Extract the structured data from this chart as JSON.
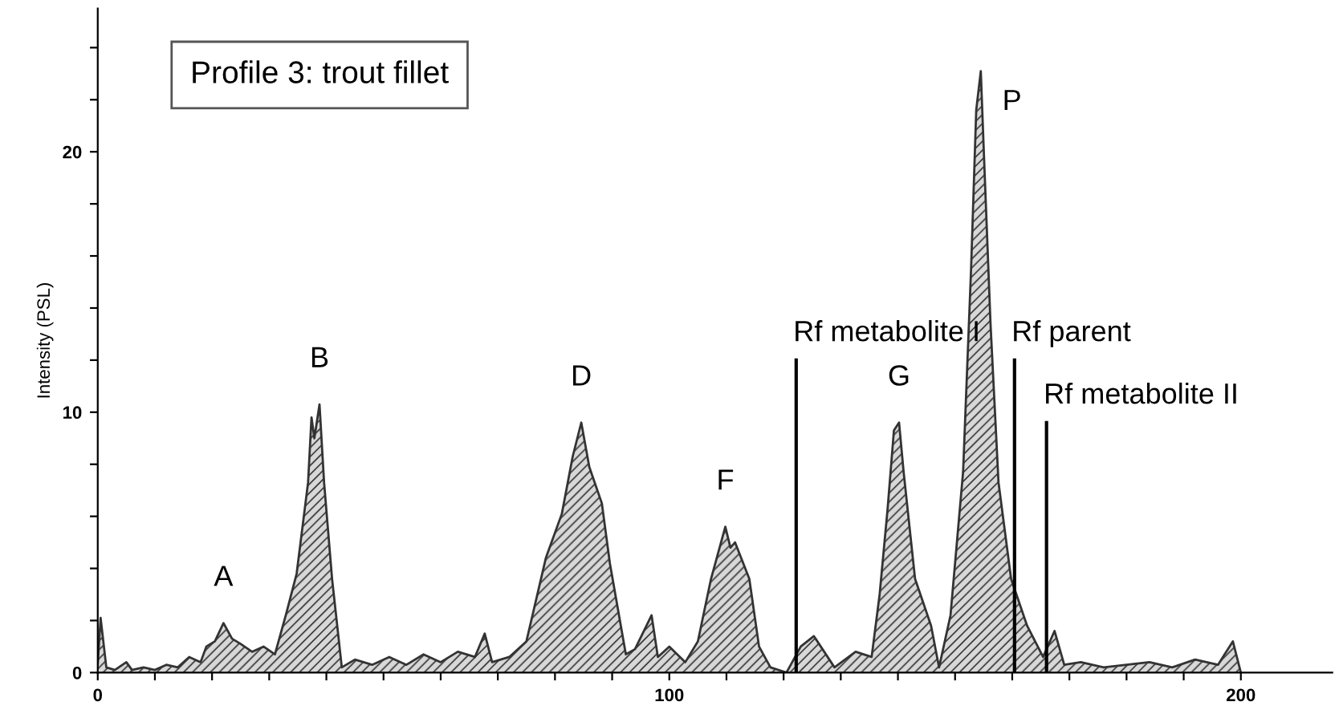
{
  "chart_data": {
    "type": "area",
    "title": "Profile 3: trout fillet",
    "ylabel": "Intensity (PSL)",
    "xlim": [
      0,
      216
    ],
    "ylim": [
      0,
      25.5
    ],
    "xticks": [
      0,
      {
        "value": 10,
        "label": null
      },
      {
        "value": 20,
        "label": null
      },
      {
        "value": 30,
        "label": null
      },
      {
        "value": 40,
        "label": null
      },
      {
        "value": 50,
        "label": null
      },
      {
        "value": 60,
        "label": null
      },
      {
        "value": 70,
        "label": null
      },
      {
        "value": 80,
        "label": null
      },
      {
        "value": 90,
        "label": null
      },
      100,
      {
        "value": 110,
        "label": null
      },
      {
        "value": 120,
        "label": null
      },
      {
        "value": 130,
        "label": null
      },
      {
        "value": 140,
        "label": null
      },
      {
        "value": 150,
        "label": null
      },
      {
        "value": 160,
        "label": null
      },
      {
        "value": 170,
        "label": null
      },
      {
        "value": 180,
        "label": null
      },
      {
        "value": 190,
        "label": null
      },
      200
    ],
    "yticks": [
      0,
      {
        "value": 2,
        "label": null
      },
      {
        "value": 4,
        "label": null
      },
      {
        "value": 6,
        "label": null
      },
      {
        "value": 8,
        "label": null
      },
      10,
      {
        "value": 12,
        "label": null
      },
      {
        "value": 14,
        "label": null
      },
      {
        "value": 16,
        "label": null
      },
      {
        "value": 18,
        "label": null
      },
      20,
      {
        "value": 22,
        "label": null
      },
      {
        "value": 24,
        "label": null
      }
    ],
    "grid": false,
    "legend": false,
    "series": [
      {
        "color": "#333333",
        "x": [
          0,
          0.5,
          1.5,
          3,
          5,
          6,
          8,
          10,
          12,
          14,
          16,
          18,
          19,
          20.5,
          22,
          23.5,
          25,
          27,
          29,
          31,
          32.9,
          34.8,
          36.8,
          37.4,
          37.9,
          38.8,
          39.6,
          41.0,
          42.7,
          45,
          48,
          51,
          54,
          57,
          60,
          63,
          66,
          67.7,
          69,
          72,
          75.0,
          78.4,
          81.2,
          83.1,
          84.6,
          86.0,
          88.2,
          89.6,
          92.4,
          94,
          96.9,
          98,
          100,
          102.8,
          105,
          107.3,
          109.8,
          110.7,
          111.5,
          114.0,
          115.7,
          117.7,
          120.5,
          123,
          125.3,
          128.9,
          132.6,
          135.4,
          136.8,
          138.2,
          139.3,
          140.2,
          141.0,
          143.0,
          145.8,
          147.2,
          149.2,
          151.4,
          152.8,
          153.7,
          154.5,
          155.1,
          156.2,
          157.6,
          159.8,
          162.6,
          165.4,
          167.4,
          169.1,
          172,
          176,
          180,
          184,
          188,
          192,
          196,
          198.6,
          200
        ],
        "values": [
          0.3,
          2.1,
          0.2,
          0.1,
          0.4,
          0.1,
          0.2,
          0.1,
          0.3,
          0.2,
          0.6,
          0.4,
          1.0,
          1.2,
          1.9,
          1.3,
          1.1,
          0.8,
          1.0,
          0.7,
          2.2,
          3.8,
          7.3,
          9.8,
          9.0,
          10.3,
          7.3,
          3.6,
          0.2,
          0.5,
          0.3,
          0.6,
          0.3,
          0.7,
          0.4,
          0.8,
          0.6,
          1.5,
          0.4,
          0.6,
          1.2,
          4.4,
          6.1,
          8.3,
          9.6,
          7.9,
          6.5,
          4.2,
          0.7,
          0.9,
          2.2,
          0.6,
          1.0,
          0.4,
          1.2,
          3.6,
          5.6,
          4.8,
          5.0,
          3.6,
          1.0,
          0.2,
          0.0,
          1.0,
          1.4,
          0.2,
          0.8,
          0.6,
          3.0,
          6.3,
          9.3,
          9.6,
          7.7,
          3.6,
          1.8,
          0.2,
          2.2,
          7.7,
          15.5,
          21.6,
          23.1,
          19.6,
          13.4,
          7.3,
          3.6,
          1.8,
          0.6,
          1.6,
          0.3,
          0.4,
          0.2,
          0.3,
          0.4,
          0.2,
          0.5,
          0.3,
          1.2,
          0.0
        ]
      },
      {
        "type": "line",
        "name": "Rf metabolite I",
        "color": "#000000",
        "x": [
          122.2,
          122.2
        ],
        "values": [
          0,
          12.0
        ]
      },
      {
        "type": "line",
        "name": "Rf parent",
        "color": "#000000",
        "x": [
          160.4,
          160.4
        ],
        "values": [
          0,
          12.0
        ]
      },
      {
        "type": "line",
        "name": "Rf metabolite II",
        "color": "#000000",
        "x": [
          166.0,
          166.0
        ],
        "values": [
          0,
          9.6
        ]
      }
    ],
    "annotations": [
      {
        "text": "A",
        "x": 22,
        "y": 1.9
      },
      {
        "text": "B",
        "x": 38.8,
        "y": 10.3
      },
      {
        "text": "D",
        "x": 84.6,
        "y": 9.6
      },
      {
        "text": "F",
        "x": 109.8,
        "y": 5.6
      },
      {
        "text": "G",
        "x": 140.2,
        "y": 9.6
      },
      {
        "text": "P",
        "x": 154.5,
        "y": 23.1
      }
    ]
  }
}
